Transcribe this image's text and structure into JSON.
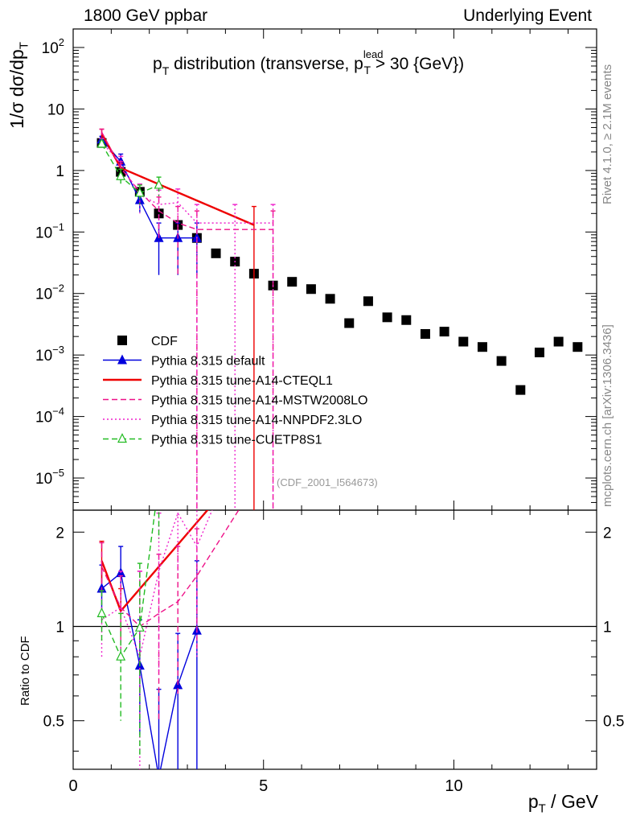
{
  "header": {
    "left": "1800 GeV ppbar",
    "right": "Underlying Event"
  },
  "side": {
    "rivet": "Rivet 4.1.0, ≥ 2.1M events",
    "mcplots": "mcplots.cern.ch [arXiv:1306.3436]"
  },
  "chart_data": {
    "type": "scatter",
    "title_main": "p",
    "title_sub": "T",
    "title_rest": " distribution (transverse, p",
    "title_sup": "lead",
    "title_sub2": "T",
    "title_end": " > 30 {GeV})",
    "analysis_tag": "(CDF_2001_I564673)",
    "ylabel_main": "1/σ dσ/dp",
    "ylabel_main_sub": "T",
    "ylabel_ratio": "Ratio to CDF",
    "xlabel": "p",
    "xlabel_sub": "T",
    "xlabel_unit": " / GeV",
    "xlim": [
      0,
      13.75
    ],
    "ylim_main_log": [
      3e-06,
      200
    ],
    "ylim_ratio_log": [
      0.35,
      2.35
    ],
    "x_ticks": [
      {
        "v": 0,
        "label": "0"
      },
      {
        "v": 5,
        "label": "5"
      },
      {
        "v": 10,
        "label": "10"
      }
    ],
    "y_ticks_main": [
      {
        "v": 1e-05,
        "base": "10",
        "exp": "−5"
      },
      {
        "v": 0.0001,
        "base": "10",
        "exp": "−4"
      },
      {
        "v": 0.001,
        "base": "10",
        "exp": "−3"
      },
      {
        "v": 0.01,
        "base": "10",
        "exp": "−2"
      },
      {
        "v": 0.1,
        "base": "10",
        "exp": "−1"
      },
      {
        "v": 1,
        "base": "1",
        "exp": ""
      },
      {
        "v": 10,
        "base": "10",
        "exp": ""
      },
      {
        "v": 100,
        "base": "10",
        "exp": "2"
      }
    ],
    "y_ticks_ratio": [
      {
        "v": 0.5,
        "label": "0.5"
      },
      {
        "v": 1,
        "label": "1"
      },
      {
        "v": 2,
        "label": "2"
      }
    ],
    "series": [
      {
        "name": "CDF",
        "color": "#000000",
        "line": "none",
        "marker": "square",
        "x": [
          0.75,
          1.25,
          1.75,
          2.25,
          2.75,
          3.25,
          3.75,
          4.25,
          4.75,
          5.25,
          5.75,
          6.25,
          6.75,
          7.25,
          7.75,
          8.25,
          8.75,
          9.25,
          9.75,
          10.25,
          10.75,
          11.25,
          11.75,
          12.25,
          12.75,
          13.25
        ],
        "y": [
          2.8,
          0.95,
          0.45,
          0.2,
          0.13,
          0.08,
          0.045,
          0.033,
          0.021,
          0.0135,
          0.0155,
          0.0118,
          0.0082,
          0.0033,
          0.0075,
          0.0041,
          0.0037,
          0.0022,
          0.0024,
          0.00165,
          0.00135,
          0.0008,
          0.00027,
          0.0011,
          0.00165,
          0.00135
        ]
      },
      {
        "name": "Pythia 8.315 default",
        "color": "#0000dd",
        "line": "solid",
        "marker": "triangle",
        "x": [
          0.75,
          1.25,
          1.75,
          2.25,
          2.75,
          3.25
        ],
        "y": [
          3.2,
          1.4,
          0.33,
          0.08,
          0.08,
          0.08
        ],
        "yerr": [
          0.4,
          0.45,
          0.12,
          0.06,
          0.06,
          0.06
        ],
        "ratio": [
          1.32,
          1.48,
          0.75,
          0.33,
          0.65,
          0.97
        ],
        "ratio_err": [
          0.25,
          0.32,
          0.3,
          0.3,
          0.3,
          0.65
        ]
      },
      {
        "name": "Pythia 8.315 tune-A14-CTEQL1",
        "color": "#ee0000",
        "line": "solid",
        "marker": "none",
        "x": [
          0.75,
          1.25,
          4.75
        ],
        "y": [
          4.0,
          1.1,
          0.13
        ],
        "yerr": [
          0.7,
          0.2,
          0.13
        ],
        "ratio": [
          1.62,
          1.12,
          3.5
        ],
        "ratio_err": [
          0.25,
          0.2,
          1.0
        ]
      },
      {
        "name": "Pythia 8.315 tune-A14-MSTW2008LO",
        "color": "#ee1188",
        "line": "dashed",
        "marker": "none",
        "x": [
          0.75,
          1.25,
          1.75,
          2.25,
          2.75,
          3.25,
          5.25
        ],
        "y": [
          4.2,
          1.1,
          0.45,
          0.22,
          0.14,
          0.11,
          0.11
        ],
        "yerr": [
          0.5,
          0.3,
          0.15,
          0.15,
          0.12,
          0.11,
          0.11
        ],
        "ratio": [
          1.55,
          1.15,
          1.0,
          1.1,
          1.2,
          1.45,
          3.5
        ],
        "ratio_err": [
          0.3,
          0.3,
          0.5,
          0.6,
          0.6,
          0.6,
          1.0
        ]
      },
      {
        "name": "Pythia 8.315 tune-A14-NNPDF2.3LO",
        "color": "#ee22cc",
        "line": "dotted",
        "marker": "none",
        "x": [
          0.75,
          1.25,
          1.75,
          2.25,
          2.75,
          3.25,
          4.25,
          5.25
        ],
        "y": [
          2.9,
          1.3,
          0.4,
          0.28,
          0.3,
          0.14,
          0.14,
          0.14
        ],
        "yerr": [
          0.4,
          0.4,
          0.2,
          0.2,
          0.2,
          0.14,
          0.14,
          0.14
        ],
        "ratio": [
          1.05,
          1.15,
          0.8,
          1.5,
          2.3,
          1.8,
          3.5,
          3.5
        ],
        "ratio_err": [
          0.25,
          0.35,
          0.7,
          0.8,
          0.8,
          1.0,
          1.0,
          1.0
        ]
      },
      {
        "name": "Pythia 8.315 tune-CUETP8S1",
        "color": "#22bb22",
        "line": "dashed",
        "marker": "open-triangle",
        "x": [
          0.75,
          1.25,
          1.75,
          2.25
        ],
        "y": [
          2.7,
          0.8,
          0.43,
          0.58
        ],
        "yerr": [
          0.3,
          0.25,
          0.15,
          0.2
        ],
        "ratio": [
          1.1,
          0.8,
          0.99,
          2.9
        ],
        "ratio_err": [
          0.2,
          0.3,
          0.6,
          1.0
        ]
      }
    ],
    "legend": [
      "CDF",
      "Pythia 8.315 default",
      "Pythia 8.315 tune-A14-CTEQL1",
      "Pythia 8.315 tune-A14-MSTW2008LO",
      "Pythia 8.315 tune-A14-NNPDF2.3LO",
      "Pythia 8.315 tune-CUETP8S1"
    ],
    "legend_position": "bottom-left"
  }
}
